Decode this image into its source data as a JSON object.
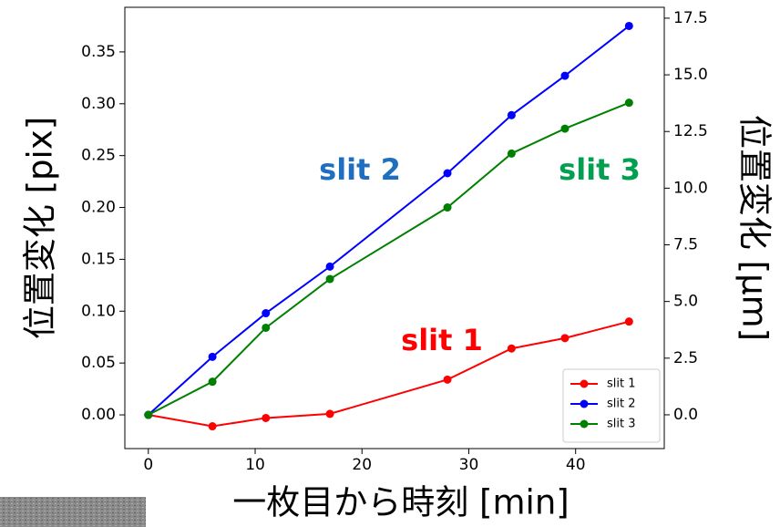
{
  "chart_data": {
    "type": "line",
    "xlabel": "一枚目から時刻 [min]",
    "ylabel": "位置変化 [pix]",
    "y2label": "位置変化 [µm]",
    "x": [
      0,
      6,
      11,
      17,
      28,
      34,
      39,
      45
    ],
    "series": [
      {
        "name": "slit 1",
        "color": "#ff0000",
        "values": [
          0,
          -0.011,
          -0.003,
          0.001,
          0.034,
          0.064,
          0.074,
          0.09
        ]
      },
      {
        "name": "slit 2",
        "color": "#0000ff",
        "values": [
          0,
          0.056,
          0.098,
          0.143,
          0.233,
          0.289,
          0.327,
          0.375
        ]
      },
      {
        "name": "slit 3",
        "color": "#008000",
        "values": [
          0,
          0.032,
          0.084,
          0.131,
          0.2,
          0.252,
          0.276,
          0.301
        ]
      }
    ],
    "annotations": [
      {
        "text": "slit 1",
        "color": "#ff0000"
      },
      {
        "text": "slit 2",
        "color": "#1f6fc0"
      },
      {
        "text": "slit 3",
        "color": "#00a050"
      }
    ],
    "xlim": [
      -2.2,
      48.3
    ],
    "xticks": [
      0,
      10,
      20,
      30,
      40
    ],
    "ylim": [
      -0.0325,
      0.393
    ],
    "yticks": [
      {
        "value": 0,
        "label": "0.00"
      },
      0.05,
      {
        "value": 0.1,
        "label": "0.10"
      },
      0.15,
      {
        "value": 0.2,
        "label": "0.20"
      },
      0.25,
      {
        "value": 0.3,
        "label": "0.30"
      },
      0.35
    ],
    "y2lim": [
      -1.49,
      17.98
    ],
    "y2ticks": [
      {
        "value": 0,
        "label": "0.0"
      },
      2.5,
      {
        "value": 5,
        "label": "5.0"
      },
      7.5,
      {
        "value": 10,
        "label": "10.0"
      },
      12.5,
      {
        "value": 15,
        "label": "15.0"
      },
      17.5
    ],
    "legend": "lower right",
    "grid": false
  }
}
